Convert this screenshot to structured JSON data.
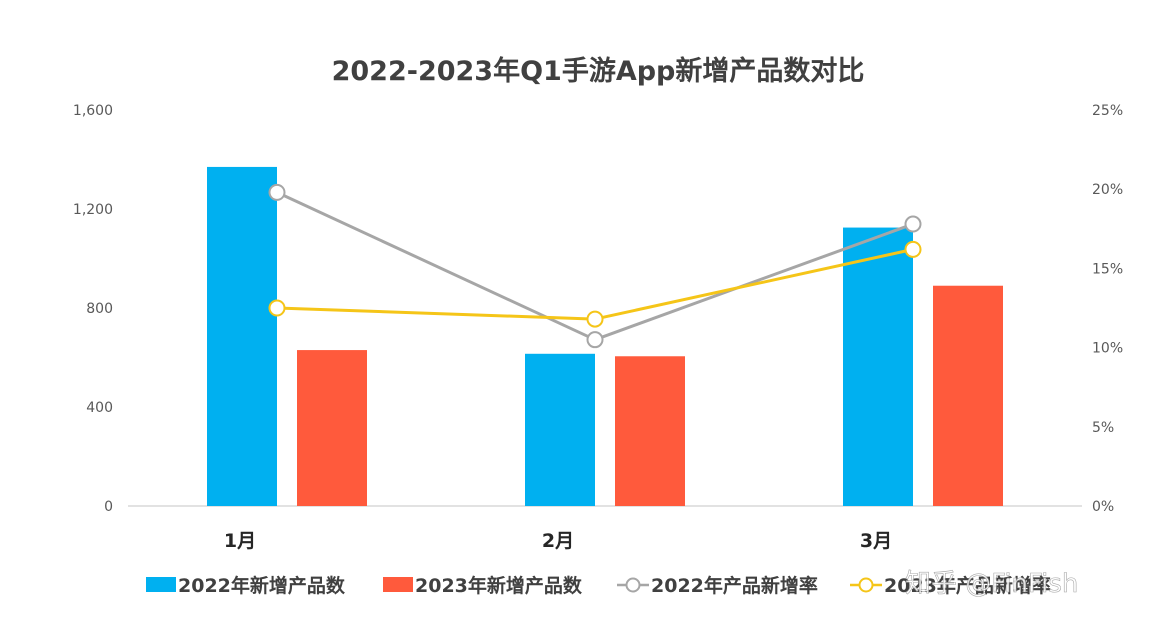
{
  "chart_data": {
    "type": "bar",
    "title": "2022-2023年Q1手游App新增产品数对比",
    "categories": [
      "1月",
      "2月",
      "3月"
    ],
    "ylim": [
      0,
      1600
    ],
    "y_ticks": [
      "0",
      "400",
      "800",
      "1,200",
      "1,600"
    ],
    "y2lim": [
      0,
      25
    ],
    "y2_ticks": [
      "0%",
      "5%",
      "10%",
      "15%",
      "20%",
      "25%"
    ],
    "series": [
      {
        "name": "2022年新增产品数",
        "type": "bar",
        "axis": "left",
        "color": "#00B0F0",
        "values": [
          1370,
          615,
          1125
        ]
      },
      {
        "name": "2023年新增产品数",
        "type": "bar",
        "axis": "left",
        "color": "#FF5A3C",
        "values": [
          630,
          605,
          890
        ]
      },
      {
        "name": "2022年产品新增率",
        "type": "line",
        "axis": "right",
        "color": "#A6A6A6",
        "values": [
          19.8,
          10.5,
          17.8
        ]
      },
      {
        "name": "2023年产品新增率",
        "type": "line",
        "axis": "right",
        "color": "#F5C518",
        "values": [
          12.5,
          11.8,
          16.2
        ]
      }
    ],
    "grid": false,
    "legend_position": "bottom"
  },
  "watermark": "知乎 @FinFish"
}
